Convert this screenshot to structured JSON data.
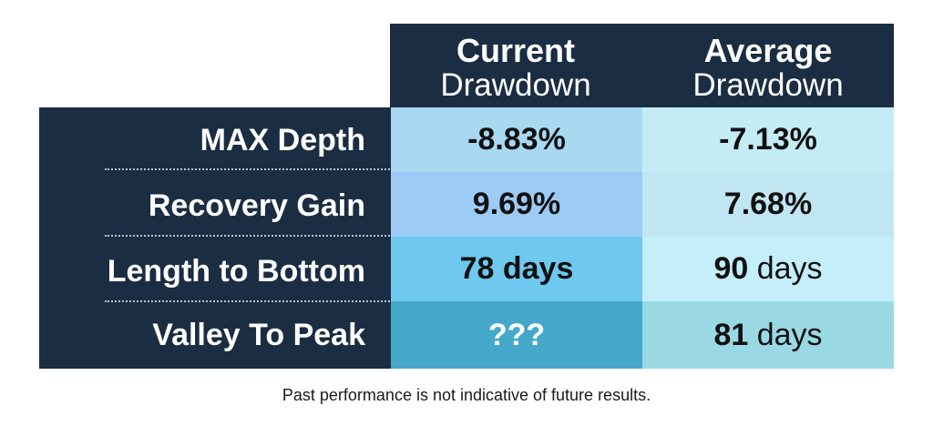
{
  "chart_data": {
    "type": "table",
    "columns": [
      {
        "line1": "Current",
        "line2": "Drawdown"
      },
      {
        "line1": "Average",
        "line2": "Drawdown"
      }
    ],
    "rows": [
      {
        "label": "MAX Depth",
        "current": {
          "num": "-8.83%",
          "unit": ""
        },
        "average": {
          "num": "-7.13%",
          "unit": ""
        }
      },
      {
        "label": "Recovery Gain",
        "current": {
          "num": "9.69%",
          "unit": ""
        },
        "average": {
          "num": "7.68%",
          "unit": ""
        }
      },
      {
        "label": "Length to Bottom",
        "current": {
          "num": "78 days",
          "unit": ""
        },
        "average": {
          "num": "90",
          "unit": "days"
        }
      },
      {
        "label": "Valley To Peak",
        "current": {
          "num": "???",
          "unit": ""
        },
        "average": {
          "num": "81",
          "unit": "days"
        }
      }
    ],
    "cell_colors": {
      "current": [
        "#a7d9f1",
        "#9ccbf6",
        "#6ec8f0",
        "#45a8cb"
      ],
      "average": [
        "#c4ecf5",
        "#c0e6f1",
        "#c4eef9",
        "#9ad9e4"
      ]
    },
    "text_colors": {
      "current": [
        "#111111",
        "#111111",
        "#111111",
        "#ffffff"
      ],
      "average": [
        "#111111",
        "#111111",
        "#111111",
        "#111111"
      ]
    }
  },
  "footnote": "Past performance is not indicative of future results."
}
